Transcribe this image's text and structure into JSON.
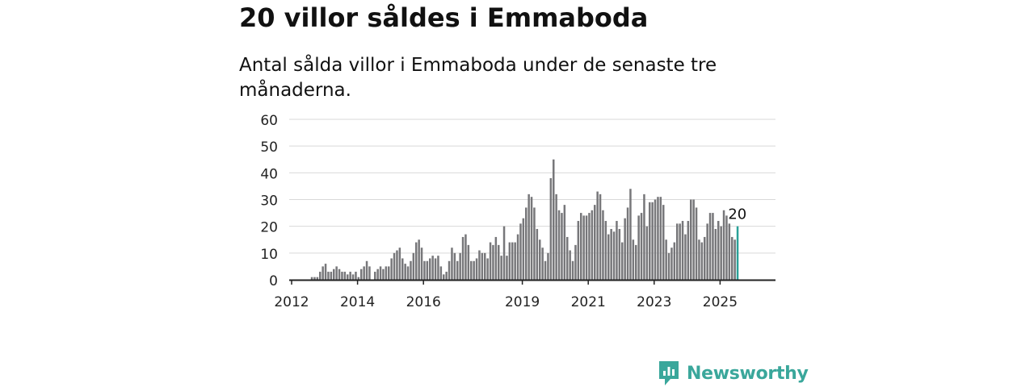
{
  "header": {
    "title": "20 villor såldes i Emmaboda",
    "subtitle": "Antal sålda villor i Emmaboda under de senaste tre månaderna."
  },
  "brand": {
    "name": "Newsworthy",
    "color": "#3aa79b",
    "icon": "newsworthy-logo-icon"
  },
  "chart_data": {
    "type": "bar",
    "title": "",
    "xlabel": "",
    "ylabel": "",
    "ylim": [
      0,
      60
    ],
    "y_ticks": [
      0,
      10,
      20,
      30,
      40,
      50,
      60
    ],
    "x_ticks": [
      "2012",
      "2014",
      "2016",
      "2019",
      "2021",
      "2023",
      "2025"
    ],
    "grid": true,
    "legend": "none",
    "bar_color": "#77777a",
    "highlight_color": "#2aa198",
    "highlight_label": "20",
    "start_period": "2012-01",
    "series": [
      {
        "values": [
          0,
          0,
          0,
          0,
          0,
          0,
          0,
          1,
          1,
          1,
          3,
          5,
          6,
          3,
          3,
          4,
          5,
          4,
          3,
          3,
          2,
          3,
          2,
          3,
          1,
          4,
          5,
          7,
          5,
          0,
          3,
          4,
          5,
          4,
          5,
          5,
          8,
          10,
          11,
          12,
          8,
          6,
          5,
          7,
          10,
          14,
          15,
          12,
          7,
          7,
          8,
          9,
          8,
          9,
          5,
          2,
          3,
          7,
          12,
          10,
          7,
          10,
          16,
          17,
          13,
          7,
          7,
          8,
          11,
          10,
          10,
          8,
          14,
          13,
          16,
          13,
          9,
          20,
          9,
          14,
          14,
          14,
          17,
          21,
          23,
          27,
          32,
          31,
          27,
          19,
          15,
          12,
          7,
          10,
          38,
          45,
          32,
          26,
          25,
          28,
          16,
          11,
          7,
          13,
          22,
          25,
          24,
          24,
          25,
          26,
          28,
          33,
          32,
          26,
          22,
          17,
          19,
          18,
          22,
          19,
          14,
          23,
          27,
          34,
          15,
          13,
          24,
          25,
          32,
          20,
          29,
          29,
          30,
          31,
          31,
          28,
          15,
          10,
          12,
          14,
          21,
          21,
          22,
          17,
          22,
          30,
          30,
          27,
          15,
          14,
          16,
          21,
          25,
          25,
          19,
          22,
          20,
          26,
          24,
          21,
          16,
          15,
          20
        ]
      }
    ]
  }
}
